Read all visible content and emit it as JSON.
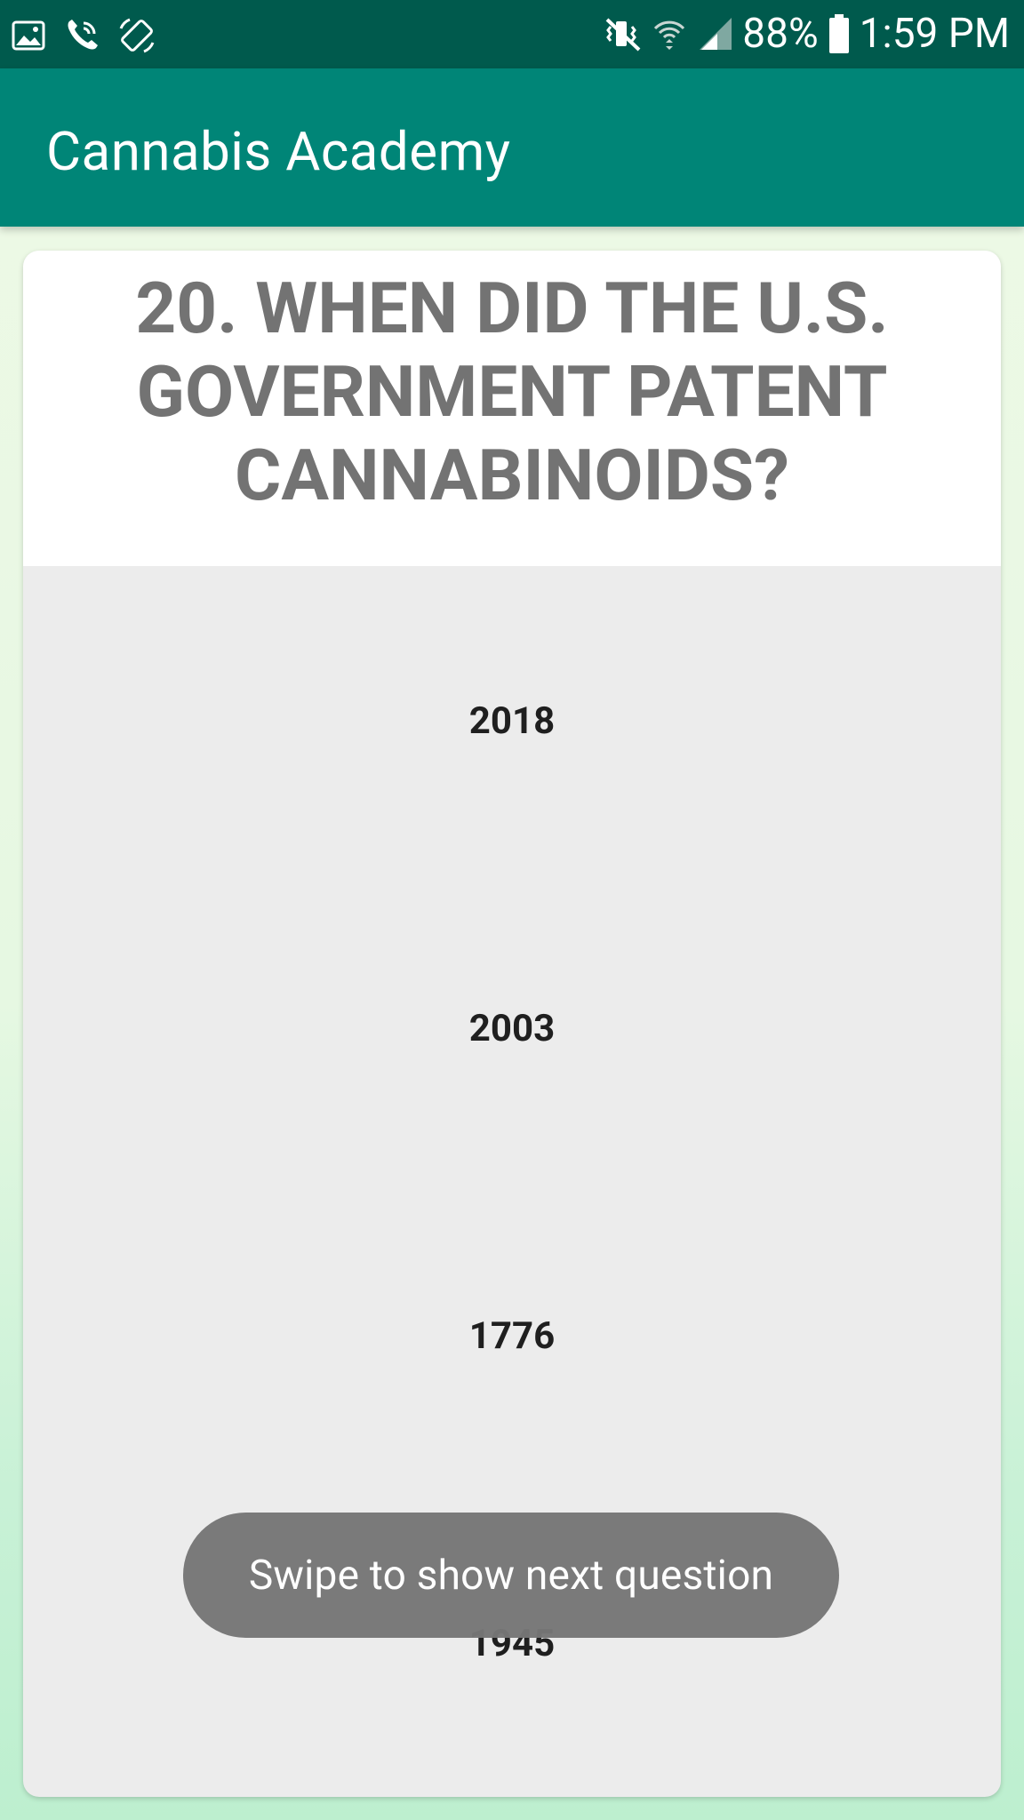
{
  "status_bar": {
    "battery_percent": "88%",
    "time": "1:59 PM",
    "left_icons": [
      "image-icon",
      "wifi-calling-icon",
      "screen-rotation-icon"
    ],
    "right_icons": [
      "mute-vibrate-icon",
      "wifi-icon",
      "cellular-signal-icon",
      "battery-icon"
    ]
  },
  "app_bar": {
    "title": "Cannabis Academy"
  },
  "question": {
    "text": "20. WHEN DID THE U.S. GOVERNMENT PATENT CANNABINOIDS?"
  },
  "answers": [
    "2018",
    "2003",
    "1776",
    "1945"
  ],
  "toast": {
    "text": "Swipe to show next question"
  },
  "colors": {
    "status_bar": "#005a4d",
    "app_bar": "#008577",
    "card_question_bg": "#ffffff",
    "card_answers_bg": "#ececec",
    "toast_bg": "#767676"
  }
}
